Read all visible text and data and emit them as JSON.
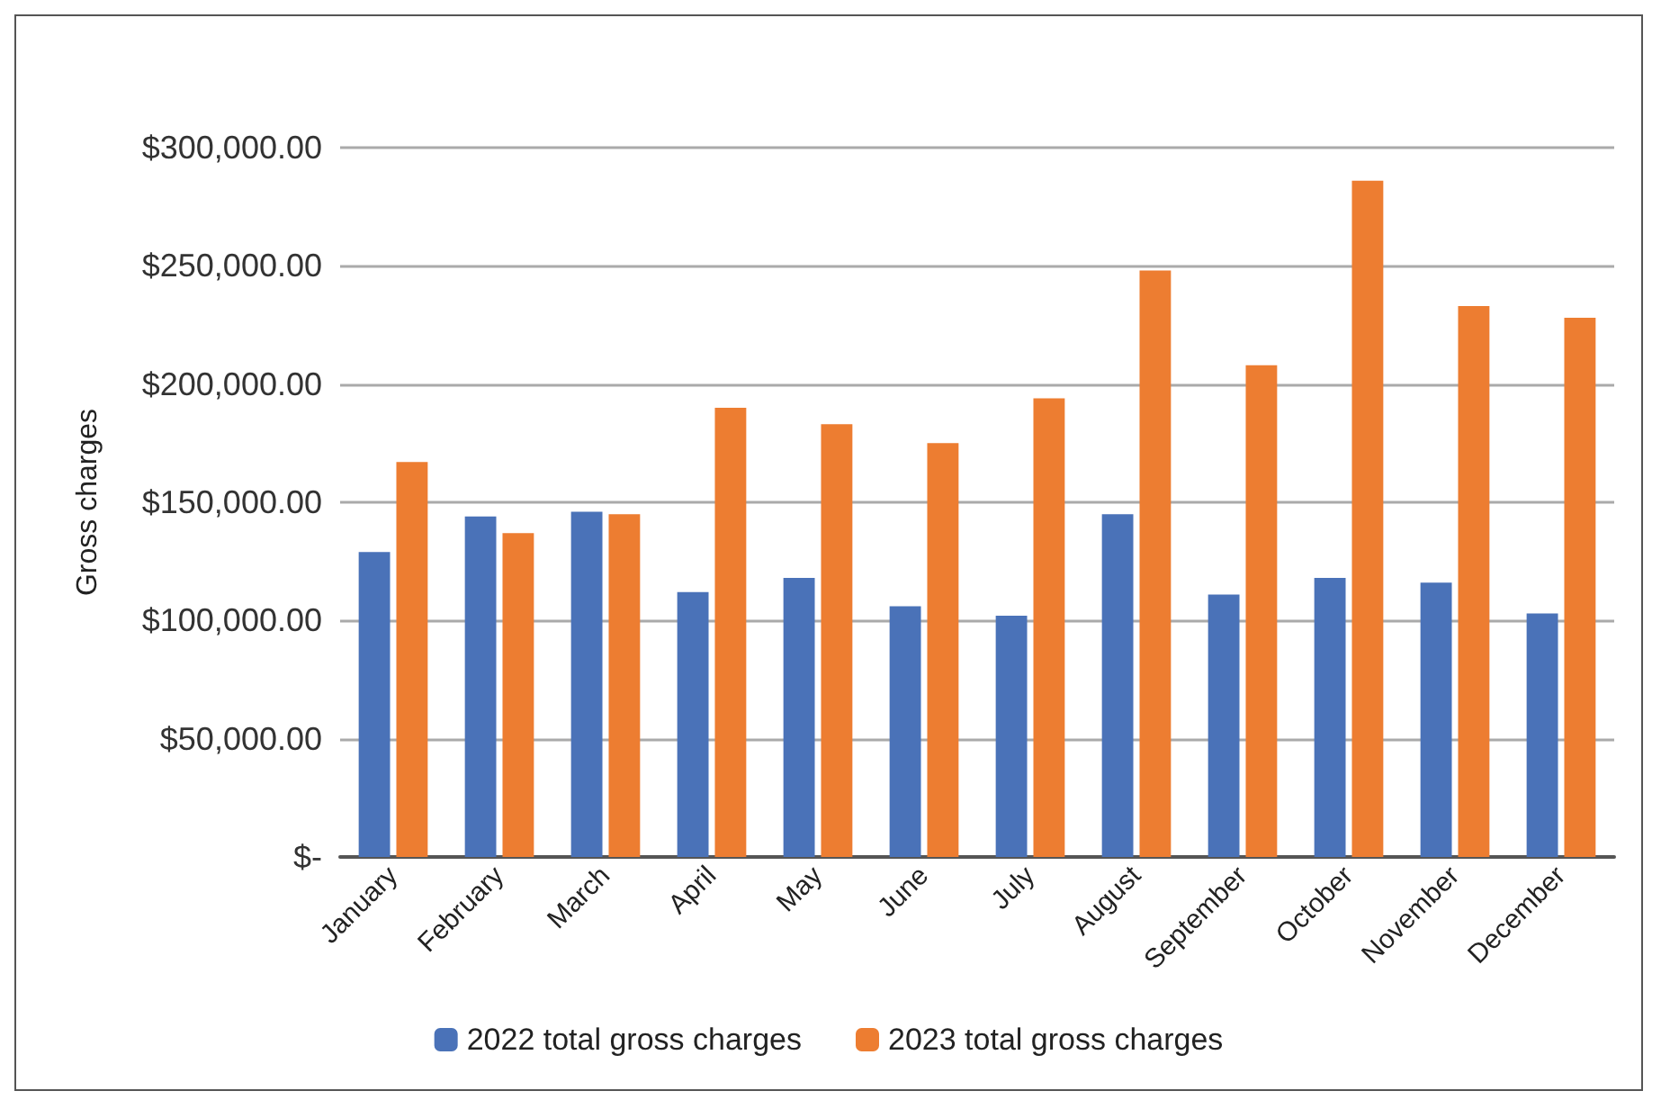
{
  "chart_data": {
    "type": "bar",
    "ylabel": "Gross charges",
    "categories": [
      "January",
      "February",
      "March",
      "April",
      "May",
      "June",
      "July",
      "August",
      "September",
      "October",
      "November",
      "December"
    ],
    "series": [
      {
        "name": "2022 total gross charges",
        "color": "#4a72b8",
        "values": [
          129000,
          144000,
          146000,
          112000,
          118000,
          106000,
          102000,
          145000,
          111000,
          118000,
          116000,
          103000
        ]
      },
      {
        "name": "2023 total gross charges",
        "color": "#ed7d31",
        "values": [
          167000,
          137000,
          145000,
          190000,
          183000,
          175000,
          194000,
          248000,
          208000,
          286000,
          233000,
          228000
        ]
      }
    ],
    "ylim": [
      0,
      300000
    ],
    "yticks": [
      {
        "value": 0,
        "label": "$-"
      },
      {
        "value": 50000,
        "label": "$50,000.00"
      },
      {
        "value": 100000,
        "label": "$100,000.00"
      },
      {
        "value": 150000,
        "label": "$150,000.00"
      },
      {
        "value": 200000,
        "label": "$200,000.00"
      },
      {
        "value": 250000,
        "label": "$250,000.00"
      },
      {
        "value": 300000,
        "label": "$300,000.00"
      }
    ],
    "grid": "y",
    "legend": "bottom"
  }
}
